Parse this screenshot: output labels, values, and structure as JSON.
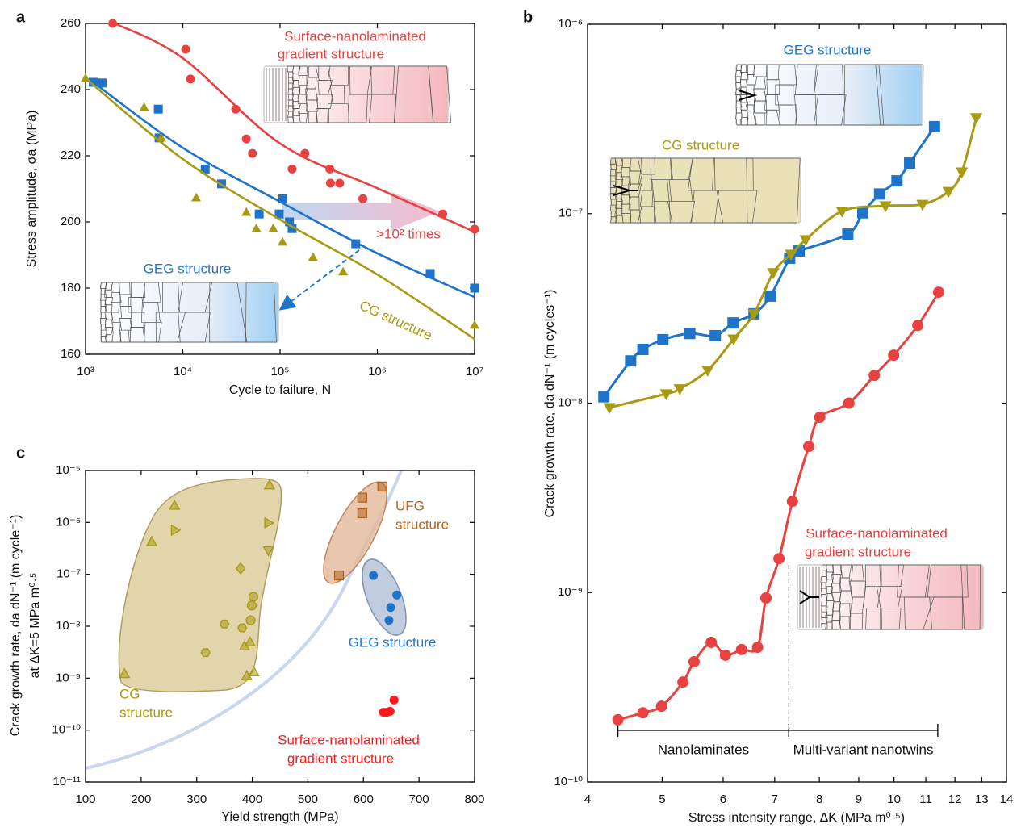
{
  "chart_data": [
    {
      "type": "scatter",
      "panel_label": "a",
      "xscale": "log",
      "yscale": "linear",
      "xlabel": "Cycle to failure, N",
      "ylabel": "Stress amplitude, σa (MPa)",
      "xlim": [
        1000,
        10000000
      ],
      "ylim": [
        160,
        260
      ],
      "xticks": [
        {
          "value": 1000,
          "label": "10³"
        },
        {
          "value": 10000,
          "label": "10⁴"
        },
        {
          "value": 100000,
          "label": "10⁵"
        },
        {
          "value": 1000000,
          "label": "10⁶"
        },
        {
          "value": 10000000,
          "label": "10⁷"
        }
      ],
      "yticks": [
        160,
        180,
        200,
        220,
        240,
        260
      ],
      "series": [
        {
          "color": "#e8413f",
          "marker": "circle",
          "x": [
            1900,
            10700,
            12000,
            35000,
            45000,
            52000,
            133000,
            180000,
            325000,
            330000,
            410000,
            710000,
            4700000,
            10000000
          ],
          "values": [
            260,
            252.2,
            243.2,
            234.1,
            225.1,
            220.7,
            216,
            220.7,
            216,
            211.7,
            211.7,
            207,
            202.4,
            197.8
          ],
          "fit_x": [
            2000,
            10000,
            100000,
            1000000,
            10000000
          ],
          "fit_values": [
            260,
            249.5,
            223.7,
            210.2,
            197
          ]
        },
        {
          "color": "#1f74c9",
          "marker": "square",
          "x": [
            1200,
            1480,
            5600,
            5700,
            17000,
            25000,
            61000,
            98000,
            107000,
            125000,
            133000,
            600000,
            3500000,
            10000000
          ],
          "values": [
            242.2,
            242,
            234.1,
            225.4,
            216,
            211.5,
            202.4,
            202.4,
            207,
            200,
            198,
            193.4,
            184.4,
            180
          ],
          "fit_x": [
            1200,
            10000,
            100000,
            1000000,
            10000000
          ],
          "fit_values": [
            242.2,
            222.4,
            206.1,
            190.5,
            177.3
          ]
        },
        {
          "color": "#a89a12",
          "marker": "triangle",
          "x": [
            1000,
            4000,
            6000,
            13700,
            45000,
            57000,
            85000,
            106000,
            218000,
            445000,
            10000000
          ],
          "values": [
            243.4,
            234.6,
            225.4,
            207.3,
            202.9,
            198,
            198,
            193.9,
            189.3,
            184.9,
            168.8
          ],
          "fit_x": [
            1000,
            10000,
            100000,
            1000000,
            10000000
          ],
          "fit_values": [
            243.4,
            219,
            200.7,
            184.1,
            164.6
          ]
        }
      ],
      "annotations": [
        {
          "text": "Surface-nanolaminated",
          "color": "#e8413f"
        },
        {
          "text": "gradient structure",
          "color": "#e8413f"
        },
        {
          "text": "GEG structure",
          "color": "#1f74c9"
        },
        {
          "text": "CG structure",
          "color": "#a89a12"
        },
        {
          "text": ">10² times",
          "color": "#e8413f"
        }
      ]
    },
    {
      "type": "line",
      "panel_label": "b",
      "xscale": "log",
      "yscale": "log",
      "xlabel": "Stress intensity range, ΔK (MPa m⁰·⁵)",
      "ylabel": "Crack growth rate, da dN⁻¹ (m cycles⁻¹)",
      "xlim": [
        4,
        14
      ],
      "ylim": [
        1e-10,
        1e-06
      ],
      "xticks": [
        4,
        5,
        6,
        7,
        8,
        9,
        10,
        11,
        12,
        13,
        14
      ],
      "yticks": [
        {
          "value": 1e-10,
          "label": "10⁻¹⁰"
        },
        {
          "value": 1e-09,
          "label": "10⁻⁹"
        },
        {
          "value": 1e-08,
          "label": "10⁻⁸"
        },
        {
          "value": 1e-07,
          "label": "10⁻⁷"
        },
        {
          "value": 1e-06,
          "label": "10⁻⁶"
        }
      ],
      "series": [
        {
          "color": "#1f74c9",
          "marker": "square",
          "x": [
            4.2,
            4.55,
            4.72,
            5.01,
            5.43,
            5.86,
            6.18,
            6.58,
            6.91,
            7.32,
            7.53,
            8.71,
            9.11,
            9.58,
            10.09,
            10.48,
            11.29
          ],
          "values": [
            1.08e-08,
            1.67e-08,
            1.92e-08,
            2.16e-08,
            2.33e-08,
            2.27e-08,
            2.65e-08,
            2.96e-08,
            3.67e-08,
            5.82e-08,
            6.35e-08,
            7.8e-08,
            1.01e-07,
            1.27e-07,
            1.49e-07,
            1.85e-07,
            2.88e-07
          ]
        },
        {
          "color": "#a89a12",
          "marker": "triangle-down",
          "x": [
            4.27,
            5.06,
            5.27,
            5.73,
            6.19,
            6.58,
            6.97,
            7.35,
            7.68,
            8.56,
            9.75,
            10.89,
            11.77,
            12.25,
            12.79
          ],
          "values": [
            9.48e-09,
            1.12e-08,
            1.19e-08,
            1.49e-08,
            2.18e-08,
            2.96e-08,
            4.88e-08,
            6.11e-08,
            7.29e-08,
            1.03e-07,
            1.1e-07,
            1.12e-07,
            1.31e-07,
            1.66e-07,
            3.21e-07
          ]
        },
        {
          "color": "#e8413f",
          "marker": "circle",
          "x": [
            4.38,
            4.72,
            4.99,
            5.32,
            5.5,
            5.79,
            6.04,
            6.34,
            6.65,
            6.82,
            7.09,
            7.38,
            7.75,
            8.01,
            8.74,
            9.43,
            9.99,
            10.74,
            11.43
          ],
          "values": [
            2.13e-10,
            2.32e-10,
            2.51e-10,
            3.37e-10,
            4.31e-10,
            5.46e-10,
            4.67e-10,
            5e-10,
            5.14e-10,
            9.36e-10,
            1.51e-09,
            3.03e-09,
            5.91e-09,
            8.42e-09,
            1e-08,
            1.4e-08,
            1.79e-08,
            2.57e-08,
            3.85e-08
          ]
        }
      ],
      "regions": [
        {
          "label": "Nanolaminates",
          "range": [
            4.38,
            7.3
          ]
        },
        {
          "label": "Multi-variant nanotwins",
          "range": [
            7.3,
            11.4
          ]
        }
      ],
      "annotations": [
        {
          "text": "GEG structure",
          "color": "#1f74c9"
        },
        {
          "text": "CG structure",
          "color": "#a89a12"
        },
        {
          "text": "Surface-nanolaminated",
          "color": "#e8413f"
        },
        {
          "text": "gradient structure",
          "color": "#e8413f"
        }
      ]
    },
    {
      "type": "scatter",
      "panel_label": "c",
      "xscale": "linear",
      "yscale": "log",
      "xlabel": "Yield strength (MPa)",
      "ylabel": [
        "Crack growth rate, da dN⁻¹ (m cycle⁻¹)",
        "at ΔK=5 MPa m⁰·⁵"
      ],
      "xlim": [
        100,
        800
      ],
      "ylim": [
        1e-11,
        1e-05
      ],
      "xticks": [
        100,
        200,
        300,
        400,
        500,
        600,
        700,
        800
      ],
      "yticks": [
        {
          "value": 1e-11,
          "label": "10⁻¹¹"
        },
        {
          "value": 1e-10,
          "label": "10⁻¹⁰"
        },
        {
          "value": 1e-09,
          "label": "10⁻⁹"
        },
        {
          "value": 1e-08,
          "label": "10⁻⁸"
        },
        {
          "value": 1e-07,
          "label": "10⁻⁷"
        },
        {
          "value": 1e-06,
          "label": "10⁻⁶"
        },
        {
          "value": 1e-05,
          "label": "10⁻⁵"
        }
      ],
      "series": [
        {
          "color": "#a89a12",
          "markers": [
            "triangle",
            "triangle",
            "triangle",
            "triangle-right",
            "hexagon",
            "hexagon",
            "diamond",
            "hexagon",
            "triangle",
            "triangle",
            "triangle",
            "circle",
            "circle",
            "circle",
            "triangle",
            "triangle",
            "triangle-right",
            "triangle-down"
          ],
          "x": [
            170,
            219,
            260,
            261,
            316,
            350,
            379,
            382,
            386,
            390,
            396,
            397,
            399,
            402,
            403,
            431,
            429,
            429
          ],
          "values": [
            1.2e-09,
            4.2e-07,
            2.1e-06,
            7.1e-07,
            3.1e-09,
            1.1e-08,
            1.3e-07,
            9.3e-09,
            4.1e-09,
            1.1e-09,
            4.9e-09,
            1.3e-08,
            2.5e-08,
            3.7e-08,
            1.3e-09,
            5.2e-06,
            9.8e-07,
            2.9e-07
          ]
        },
        {
          "color": "#b5651d",
          "marker": "square",
          "x": [
            556,
            598,
            598,
            634
          ],
          "values": [
            9.5e-08,
            3e-06,
            1.5e-06,
            4.9e-06
          ]
        },
        {
          "color": "#1f74c9",
          "marker": "circle",
          "x": [
            618,
            660,
            649,
            646
          ],
          "values": [
            9.5e-08,
            4e-08,
            2.3e-08,
            1.3e-08
          ]
        },
        {
          "color": "#ff1a1a",
          "marker": "circle",
          "x": [
            636,
            642,
            648,
            655
          ],
          "values": [
            2.2e-10,
            2.2e-10,
            2.3e-10,
            3.8e-10
          ]
        }
      ],
      "annotations": [
        {
          "text": "UFG",
          "color": "#b5651d"
        },
        {
          "text": "structure",
          "color": "#b5651d"
        },
        {
          "text": "GEG structure",
          "color": "#1f74c9"
        },
        {
          "text": "CG",
          "color": "#a89a12"
        },
        {
          "text": "structure",
          "color": "#a89a12"
        },
        {
          "text": "Surface-nanolaminated",
          "color": "#ff1a1a"
        },
        {
          "text": "gradient structure",
          "color": "#ff1a1a"
        }
      ]
    }
  ]
}
